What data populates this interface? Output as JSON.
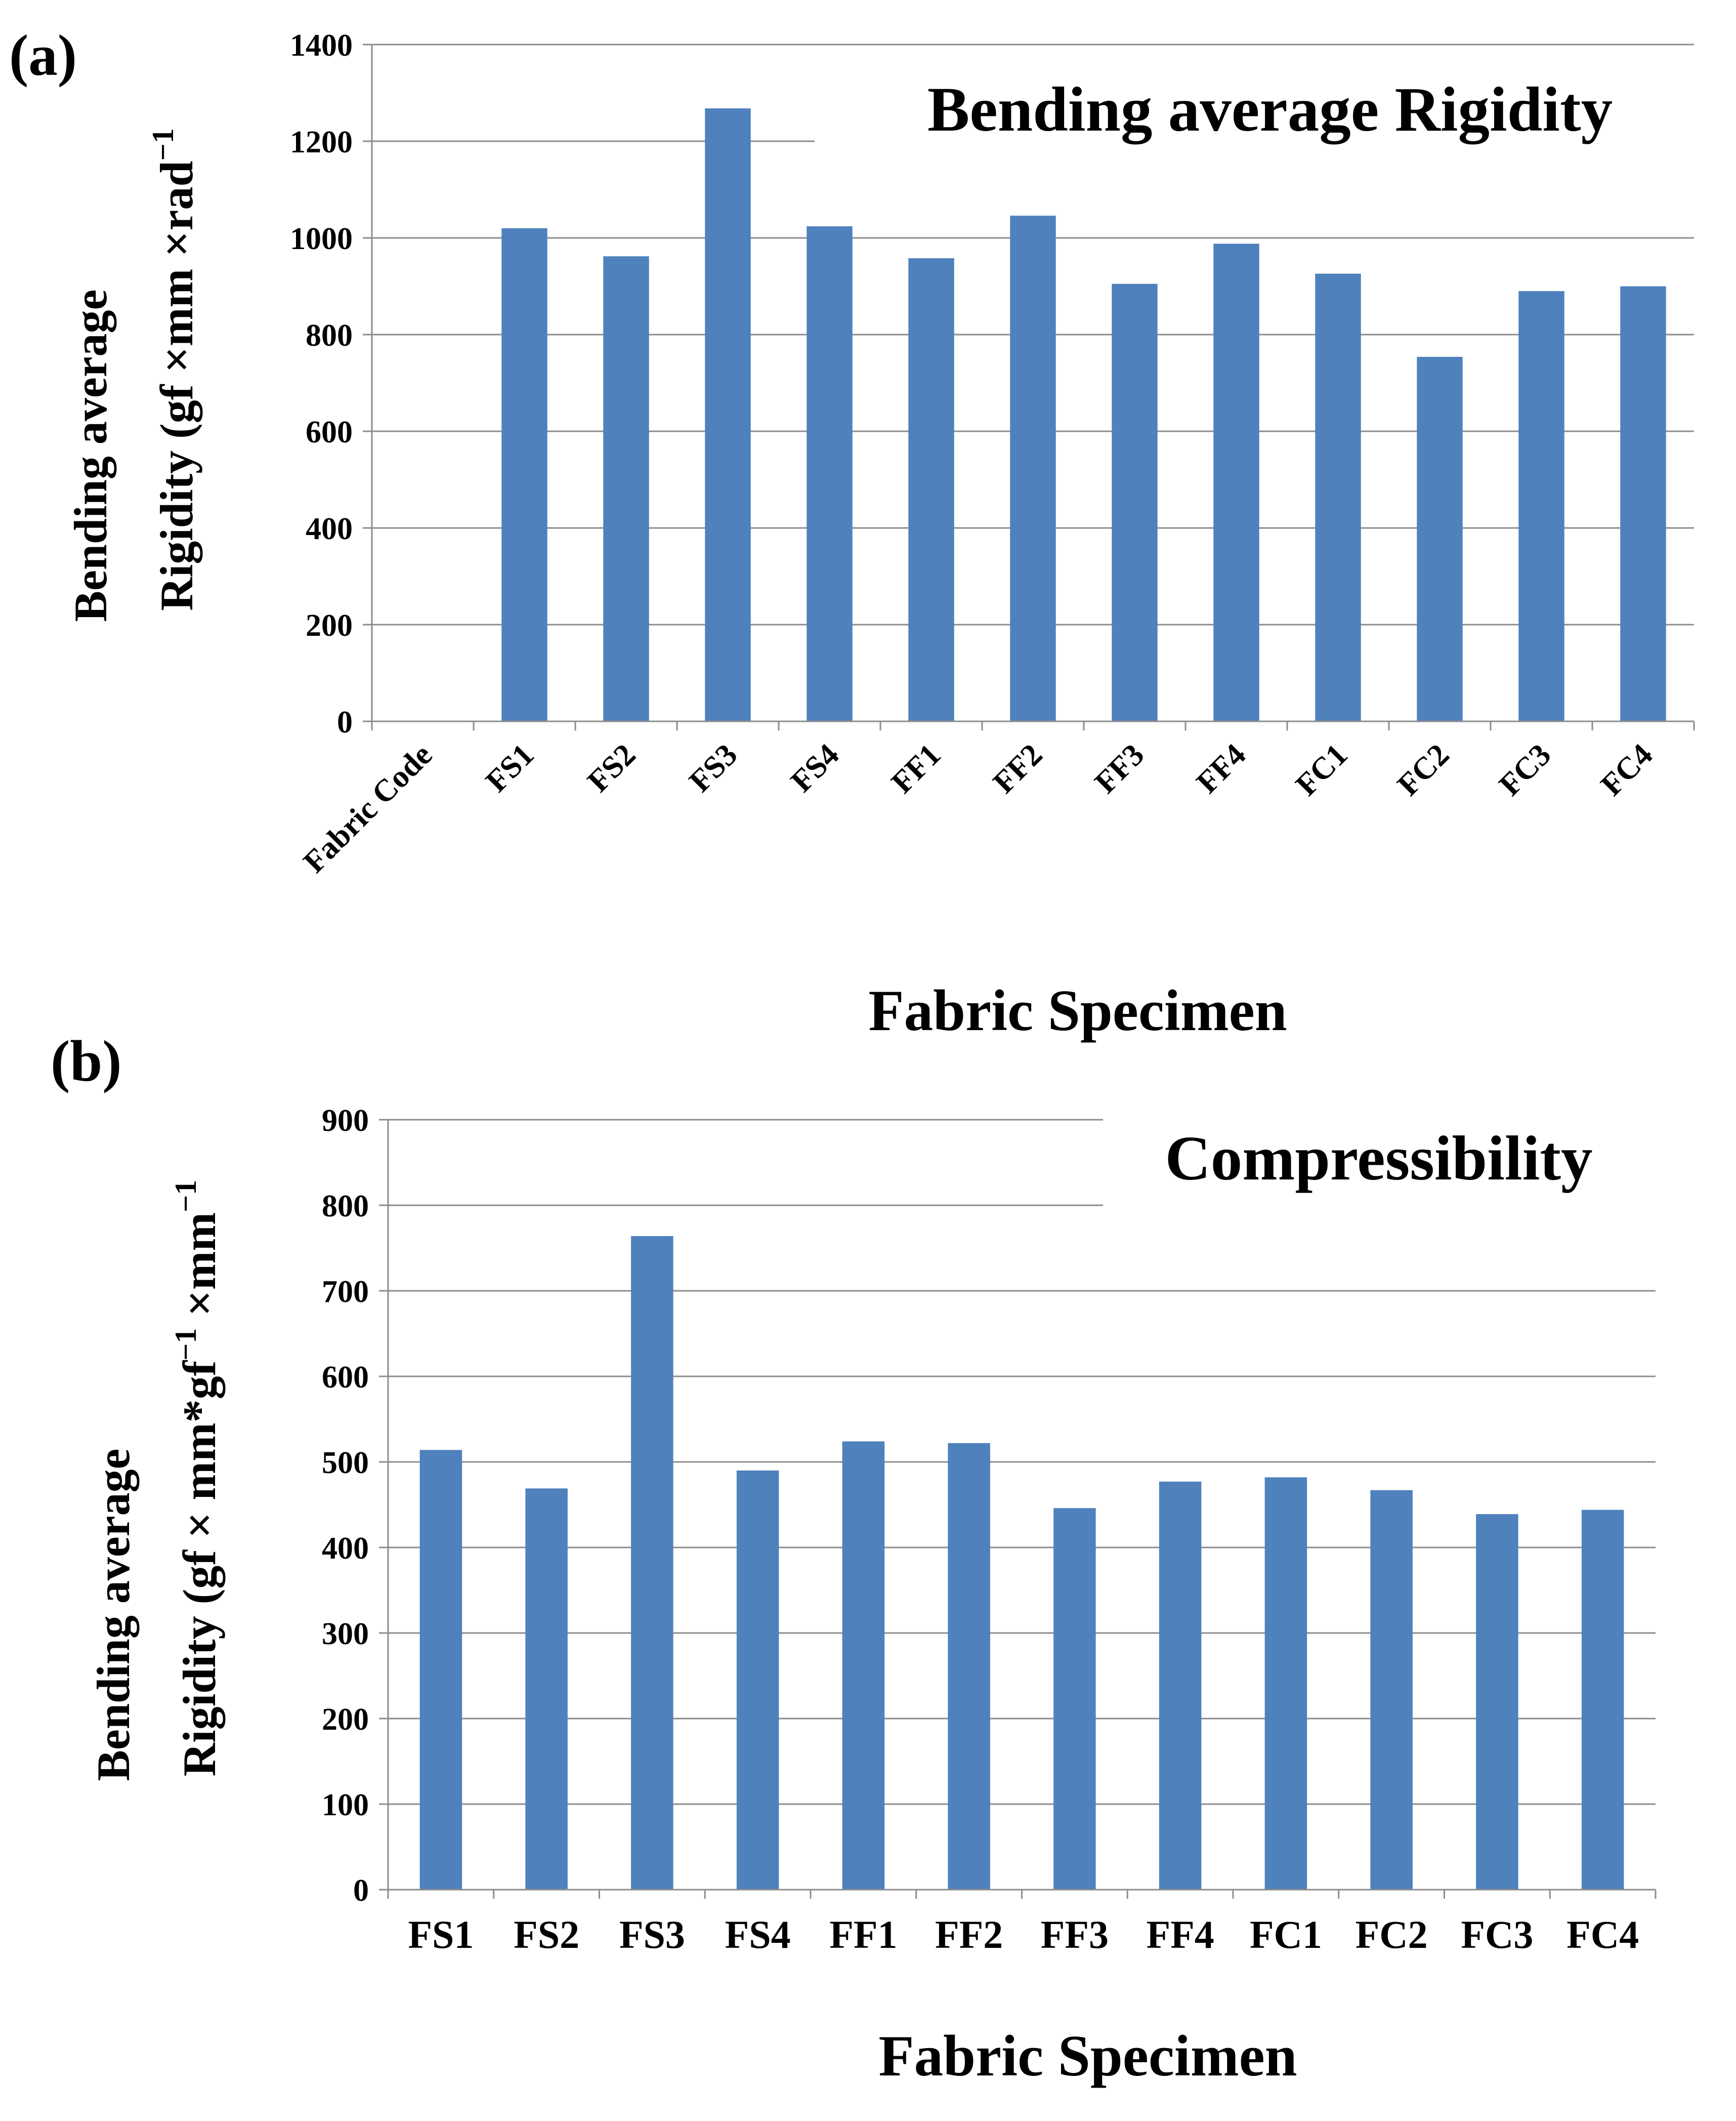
{
  "figure": {
    "panels": [
      {
        "label": "(a)",
        "ylabel_line1": "Bending average",
        "ylabel_line2": "Rigidity (gf ×mm ×rad",
        "ylabel_sup": "−1",
        "ylabel_tail": "",
        "xlabel": "Fabric Specimen"
      },
      {
        "label": "(b)",
        "ylabel_line1": "Bending average",
        "ylabel_line2": "Rigidity (gf × mm*gf",
        "ylabel_sup": "−1",
        "ylabel_tail": " ×mm",
        "ylabel_sup2": "−1",
        "xlabel": "Fabric Specimen"
      }
    ],
    "bar_color": "#4f81bd",
    "grid_color": "#8c8c8c"
  },
  "chart_data": [
    {
      "type": "bar",
      "title": "Bending average Rigidity",
      "xlabel": "Fabric Specimen",
      "ylabel": "Bending average Rigidity (gf ×mm ×rad−1",
      "categories": [
        "Fabric Code",
        "FS1",
        "FS2",
        "FS3",
        "FS4",
        "FF1",
        "FF2",
        "FF3",
        "FF4",
        "FC1",
        "FC2",
        "FC3",
        "FC4"
      ],
      "values": [
        null,
        1020,
        962,
        1268,
        1024,
        958,
        1046,
        905,
        988,
        926,
        754,
        890,
        900
      ],
      "ylim": [
        0,
        1400
      ],
      "yticks": [
        0,
        200,
        400,
        600,
        800,
        1000,
        1200,
        1400
      ],
      "grid": true,
      "tick_labels_rotated": true
    },
    {
      "type": "bar",
      "title": "Compressibility",
      "xlabel": "Fabric Specimen",
      "ylabel": "Bending average Rigidity (gf × mm*gf−1 ×mm−1",
      "categories": [
        "FS1",
        "FS2",
        "FS3",
        "FS4",
        "FF1",
        "FF2",
        "FF3",
        "FF4",
        "FC1",
        "FC2",
        "FC3",
        "FC4"
      ],
      "values": [
        514,
        469,
        764,
        490,
        524,
        522,
        446,
        477,
        482,
        467,
        439,
        444
      ],
      "ylim": [
        0,
        900
      ],
      "yticks": [
        0,
        100,
        200,
        300,
        400,
        500,
        600,
        700,
        800,
        900
      ],
      "grid": true,
      "tick_labels_rotated": false
    }
  ]
}
